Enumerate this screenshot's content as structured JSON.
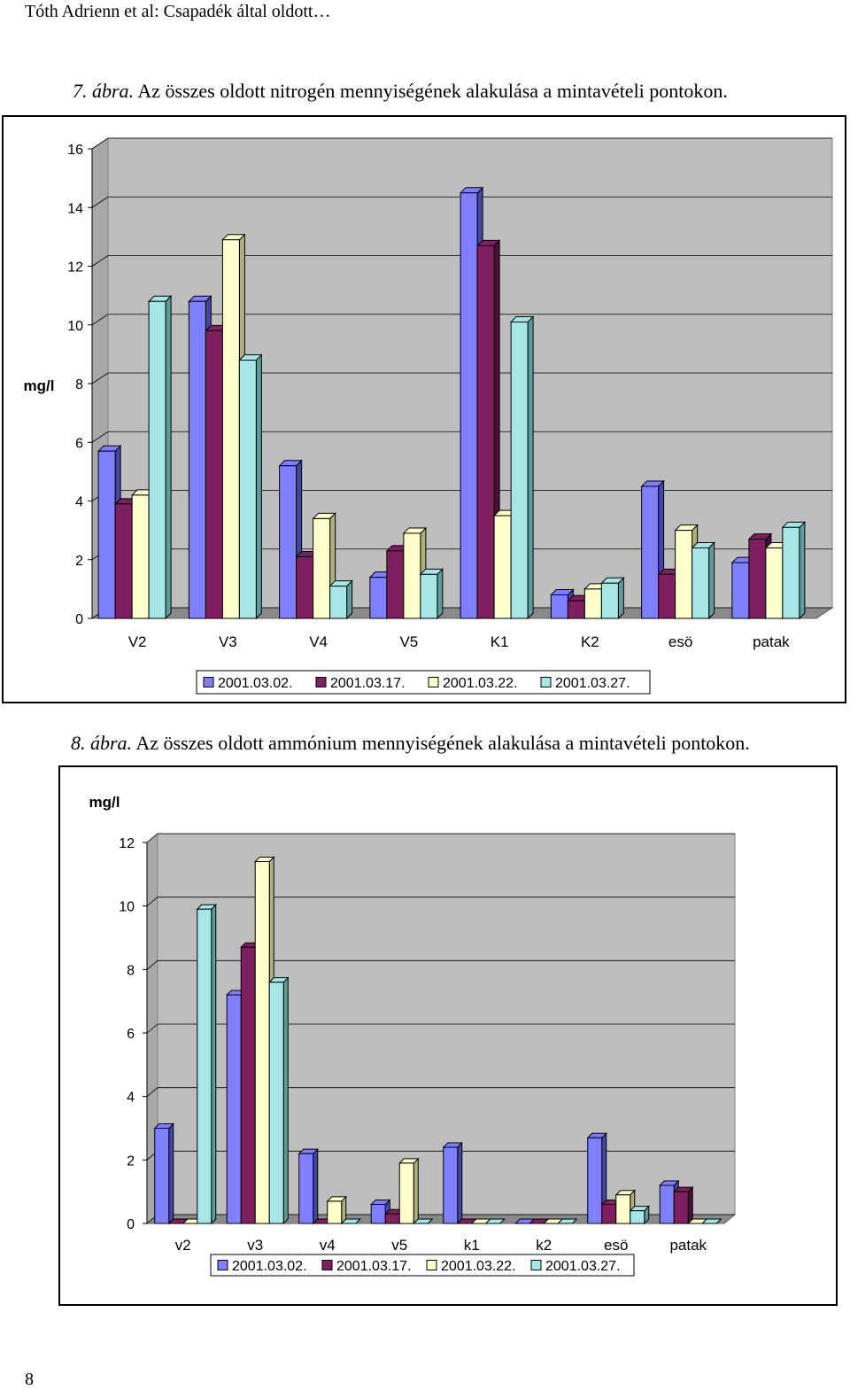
{
  "header": {
    "running_head": "Tóth Adrienn et al: Csapadék által oldott…"
  },
  "figure7": {
    "caption_label": "7. ábra.",
    "caption_text": " Az összes oldott nitrogén mennyiségének alakulása a mintavételi pontokon."
  },
  "figure8": {
    "caption_label": "8. ábra.",
    "caption_text": " Az összes oldott ammónium mennyiségének alakulása a mintavételi pontokon."
  },
  "footer": {
    "page_number": "8"
  },
  "colors": {
    "series": [
      "#7F7FFF",
      "#7F1F5F",
      "#FFFFCC",
      "#A6E6E6"
    ],
    "series_dark": [
      "#4545A8",
      "#4A0F38",
      "#B0B07C",
      "#5E9C9C"
    ],
    "wall": "#BEBEBE",
    "floor": "#8A8A8A"
  },
  "chart_data": [
    {
      "type": "bar",
      "ylabel": "mg/l",
      "ylim": [
        0,
        16
      ],
      "yticks": [
        "0",
        "2",
        "4",
        "6",
        "8",
        "10",
        "12",
        "14",
        "16"
      ],
      "categories": [
        "V2",
        "V3",
        "V4",
        "V5",
        "K1",
        "K2",
        "esö",
        "patak"
      ],
      "series": [
        {
          "name": "2001.03.02.",
          "values": [
            5.7,
            10.8,
            5.2,
            1.4,
            14.5,
            0.8,
            4.5,
            1.9
          ]
        },
        {
          "name": "2001.03.17.",
          "values": [
            3.9,
            9.8,
            2.1,
            2.3,
            12.7,
            0.6,
            1.5,
            2.7
          ]
        },
        {
          "name": "2001.03.22.",
          "values": [
            4.2,
            12.9,
            3.4,
            2.9,
            3.5,
            1.0,
            3.0,
            2.4
          ]
        },
        {
          "name": "2001.03.27.",
          "values": [
            10.8,
            8.8,
            1.1,
            1.5,
            10.1,
            1.2,
            2.4,
            3.1
          ]
        }
      ]
    },
    {
      "type": "bar",
      "ylabel": "mg/l",
      "ylim": [
        0,
        12
      ],
      "yticks": [
        "0",
        "2",
        "4",
        "6",
        "8",
        "10",
        "12"
      ],
      "categories": [
        "v2",
        "v3",
        "v4",
        "v5",
        "k1",
        "k2",
        "esö",
        "patak"
      ],
      "series": [
        {
          "name": "2001.03.02.",
          "values": [
            3.0,
            7.2,
            2.2,
            0.6,
            2.4,
            0.0,
            2.7,
            1.2
          ]
        },
        {
          "name": "2001.03.17.",
          "values": [
            0.0,
            8.7,
            0.0,
            0.3,
            0.0,
            0.0,
            0.6,
            1.0
          ]
        },
        {
          "name": "2001.03.22.",
          "values": [
            0.0,
            11.4,
            0.7,
            1.9,
            0.0,
            0.0,
            0.9,
            0.0
          ]
        },
        {
          "name": "2001.03.27.",
          "values": [
            9.9,
            7.6,
            0.0,
            0.0,
            0.0,
            0.0,
            0.4,
            0.0
          ]
        }
      ]
    }
  ]
}
